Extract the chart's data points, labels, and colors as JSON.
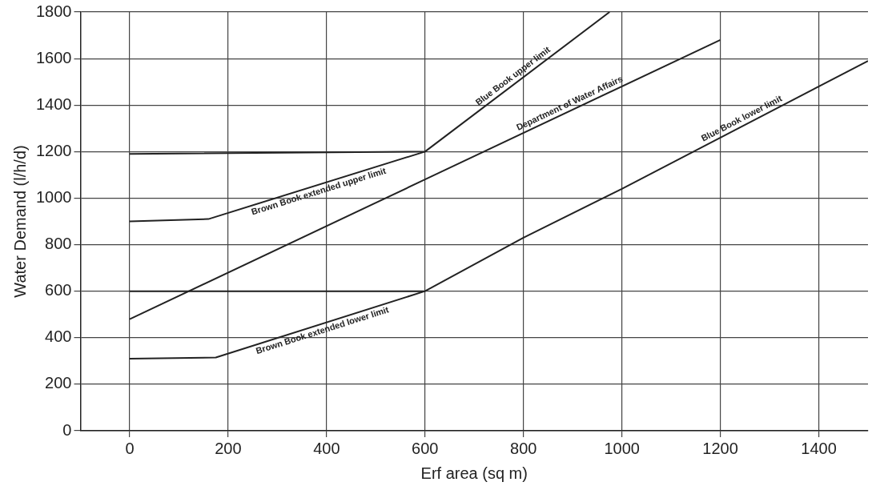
{
  "chart_data": {
    "type": "line",
    "xlabel": "Erf area (sq m)",
    "ylabel": "Water Demand (l/h/d)",
    "xlim": [
      -100,
      1500
    ],
    "xticks": [
      0,
      200,
      400,
      600,
      800,
      1000,
      1200,
      1400
    ],
    "ylim": [
      0,
      1800
    ],
    "yticks": [
      0,
      200,
      400,
      600,
      800,
      1000,
      1200,
      1400,
      1600,
      1800
    ],
    "grid": true,
    "legend": false,
    "marker": "none",
    "line_style": "solid",
    "series": [
      {
        "name": "Blue Book upper limit",
        "color": "#222222",
        "x": [
          0,
          600,
          975
        ],
        "values": [
          1190,
          1200,
          1800
        ]
      },
      {
        "name": "Brown Book extended upper limit",
        "color": "#222222",
        "x": [
          0,
          160,
          600
        ],
        "values": [
          900,
          910,
          1200
        ]
      },
      {
        "name": "Department of Water Affairs",
        "color": "#222222",
        "x": [
          0,
          600,
          1200
        ],
        "values": [
          480,
          1080,
          1680
        ]
      },
      {
        "name": "Blue Book lower limit",
        "color": "#222222",
        "x": [
          0,
          600,
          800,
          1000,
          1500
        ],
        "values": [
          600,
          600,
          830,
          1040,
          1590
        ]
      },
      {
        "name": "Brown Book extended lower limit",
        "color": "#222222",
        "x": [
          0,
          175,
          600
        ],
        "values": [
          310,
          315,
          600
        ]
      }
    ]
  }
}
